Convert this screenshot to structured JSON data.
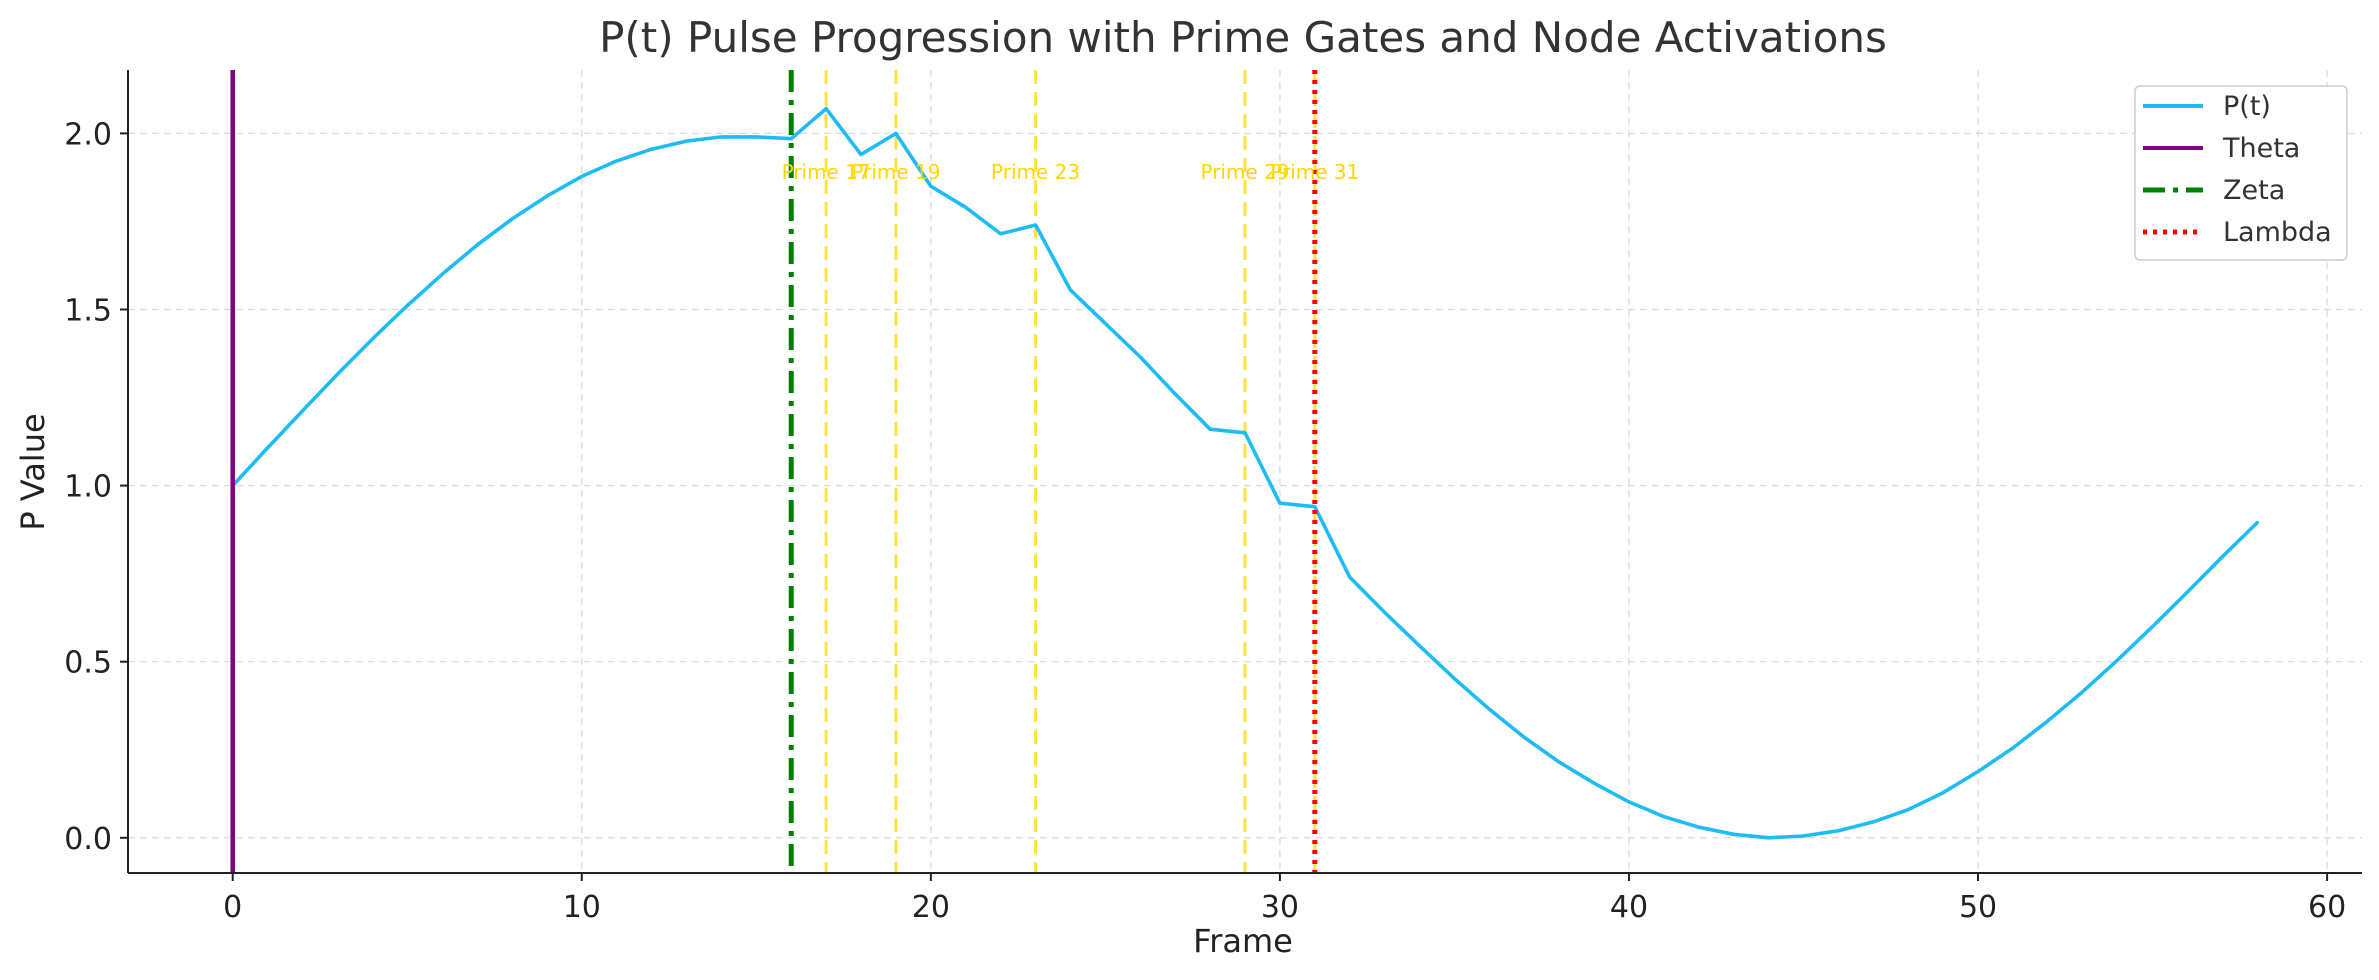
{
  "chart_data": {
    "type": "line",
    "title": "P(t) Pulse Progression with Prime Gates and Node Activations",
    "xlabel": "Frame",
    "ylabel": "P Value",
    "xlim": [
      -3,
      61
    ],
    "ylim": [
      -0.1,
      2.18
    ],
    "xticks": [
      0,
      10,
      20,
      30,
      40,
      50,
      60
    ],
    "yticks": [
      0.0,
      0.5,
      1.0,
      1.5,
      2.0
    ],
    "ytick_labels": [
      "0.0",
      "0.5",
      "1.0",
      "1.5",
      "2.0"
    ],
    "grid": true,
    "legend_position": "top-right",
    "series": [
      {
        "name": "P(t)",
        "color": "#1ebcf5",
        "x": [
          0,
          1,
          2,
          3,
          4,
          5,
          6,
          7,
          8,
          9,
          10,
          11,
          12,
          13,
          14,
          15,
          16,
          17,
          18,
          19,
          20,
          21,
          22,
          23,
          24,
          25,
          26,
          27,
          28,
          29,
          30,
          31,
          32,
          33,
          34,
          35,
          36,
          37,
          38,
          39,
          40,
          41,
          42,
          43,
          44,
          45,
          46,
          47,
          48,
          49,
          50,
          51,
          52,
          53,
          54,
          55,
          56,
          57,
          58
        ],
        "values": [
          1.0,
          1.107,
          1.212,
          1.316,
          1.416,
          1.511,
          1.6,
          1.683,
          1.757,
          1.822,
          1.878,
          1.922,
          1.955,
          1.978,
          1.99,
          1.99,
          1.985,
          2.07,
          1.94,
          2.0,
          1.85,
          1.79,
          1.715,
          1.74,
          1.555,
          1.46,
          1.365,
          1.26,
          1.16,
          1.15,
          0.95,
          0.94,
          0.74,
          0.64,
          0.545,
          0.452,
          0.365,
          0.285,
          0.215,
          0.155,
          0.102,
          0.06,
          0.03,
          0.01,
          0.0,
          0.005,
          0.02,
          0.045,
          0.08,
          0.128,
          0.188,
          0.255,
          0.332,
          0.415,
          0.505,
          0.6,
          0.698,
          0.798,
          0.895
        ]
      }
    ],
    "node_lines": [
      {
        "name": "Theta",
        "x": 0,
        "color": "#800080",
        "style": "solid"
      },
      {
        "name": "Zeta",
        "x": 16,
        "color": "#008000",
        "style": "dashdot"
      },
      {
        "name": "Lambda",
        "x": 31,
        "color": "#ff0000",
        "style": "dotted"
      }
    ],
    "prime_gates": {
      "color": "#ffd700",
      "style": "dashed",
      "label_y": 1.87,
      "items": [
        {
          "x": 17,
          "label": "Prime 17"
        },
        {
          "x": 19,
          "label": "Prime 19"
        },
        {
          "x": 23,
          "label": "Prime 23"
        },
        {
          "x": 29,
          "label": "Prime 29"
        },
        {
          "x": 31,
          "label": "Prime 31"
        }
      ]
    },
    "legend": [
      {
        "label": "P(t)",
        "color": "#1ebcf5",
        "style": "solid"
      },
      {
        "label": "Theta",
        "color": "#800080",
        "style": "solid"
      },
      {
        "label": "Zeta",
        "color": "#008000",
        "style": "dashdot"
      },
      {
        "label": "Lambda",
        "color": "#ff0000",
        "style": "dotted"
      }
    ]
  }
}
